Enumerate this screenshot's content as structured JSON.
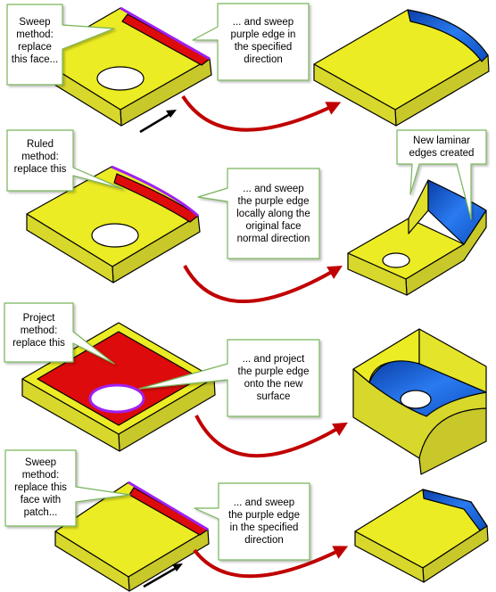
{
  "colors": {
    "face_top": "#ecec24",
    "face_side": "#c8c82a",
    "face_edge": "#000000",
    "replaced_face": "#dd0b0b",
    "purple_edge": "#a020f0",
    "new_surface_blue": "#1565d8",
    "arrow_red": "#c00000",
    "callout_border": "#78b45a"
  },
  "rows": [
    {
      "callout_left": "Sweep\nmethod:\nreplace\nthis face...",
      "callout_right": "... and sweep\npurple edge in\nthe specified\ndirection",
      "has_direction_arrow": true
    },
    {
      "callout_left": "Ruled\nmethod:\nreplace this",
      "callout_right": "... and sweep\nthe  purple edge\nlocally along the\noriginal face\nnormal direction",
      "callout_extra": "New laminar\nedges created"
    },
    {
      "callout_left": "Project\nmethod:\nreplace this",
      "callout_right": "... and project\nthe purple edge\nonto the new\nsurface"
    },
    {
      "callout_left": "Sweep\nmethod:\nreplace this\nface with\npatch...",
      "callout_right": "... and sweep\nthe purple edge\nin the specified\ndirection",
      "has_direction_arrow": true
    }
  ]
}
